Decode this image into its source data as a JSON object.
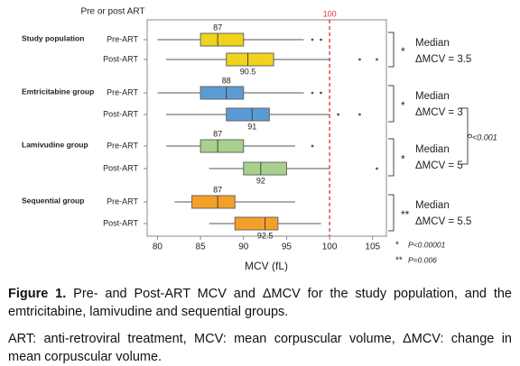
{
  "chart_data": {
    "type": "boxplot",
    "row_header": "Pre or post ART",
    "xlabel": "MCV (fL)",
    "xlim": [
      78.8,
      106.6
    ],
    "xticks": [
      80,
      85,
      90,
      95,
      100,
      105
    ],
    "ref_line": 100,
    "ref_color": "#e03030",
    "groups": [
      {
        "name": "Study population",
        "color": "#f2d31b",
        "stars": "*",
        "note": [
          "Median",
          "ΔMCV = 3.5"
        ],
        "boxes": [
          {
            "label": "Pre-ART",
            "whislo": 80,
            "q1": 85,
            "med": 87,
            "q3": 90,
            "whishi": 97,
            "fliers": [
              98,
              99
            ]
          },
          {
            "label": "Post-ART",
            "whislo": 81,
            "q1": 88,
            "med": 90.5,
            "q3": 93.5,
            "whishi": 100,
            "fliers": [
              103.5,
              105.5
            ]
          }
        ]
      },
      {
        "name": "Emtricitabine group",
        "color": "#5b9bd5",
        "stars": "*",
        "note": [
          "Median",
          "ΔMCV = 3"
        ],
        "boxes": [
          {
            "label": "Pre-ART",
            "whislo": 80,
            "q1": 85,
            "med": 88,
            "q3": 90,
            "whishi": 97,
            "fliers": [
              98,
              99
            ]
          },
          {
            "label": "Post-ART",
            "whislo": 81,
            "q1": 88,
            "med": 91,
            "q3": 93,
            "whishi": 100,
            "fliers": [
              101,
              103.5
            ]
          }
        ]
      },
      {
        "name": "Lamivudine group",
        "color": "#a9d18e",
        "stars": "*",
        "note": [
          "Median",
          "ΔMCV = 5"
        ],
        "boxes": [
          {
            "label": "Pre-ART",
            "whislo": 81,
            "q1": 85,
            "med": 87,
            "q3": 90,
            "whishi": 96,
            "fliers": [
              98
            ]
          },
          {
            "label": "Post-ART",
            "whislo": 86,
            "q1": 90,
            "med": 92,
            "q3": 95,
            "whishi": 100,
            "fliers": [
              105.5
            ]
          }
        ]
      },
      {
        "name": "Sequential group",
        "color": "#f4a028",
        "stars": "**",
        "note": [
          "Median",
          "ΔMCV = 5.5"
        ],
        "boxes": [
          {
            "label": "Pre-ART",
            "whislo": 82,
            "q1": 84,
            "med": 87,
            "q3": 89,
            "whishi": 96,
            "fliers": []
          },
          {
            "label": "Post-ART",
            "whislo": 86,
            "q1": 89,
            "med": 92.5,
            "q3": 94,
            "whishi": 99,
            "fliers": []
          }
        ]
      }
    ],
    "between_groups": "P<0.001",
    "footnotes": [
      {
        "stars": "*",
        "text": "P<0.00001"
      },
      {
        "stars": "**",
        "text": "P=0.006"
      }
    ]
  },
  "caption": {
    "label": "Figure 1.",
    "text": "Pre- and Post-ART MCV and ΔMCV for the study population, and the emtricitabine, lamivudine and sequential groups.",
    "note": "ART: anti-retroviral treatment, MCV: mean corpuscular volume, ΔMCV: change in mean corpuscular volume."
  }
}
